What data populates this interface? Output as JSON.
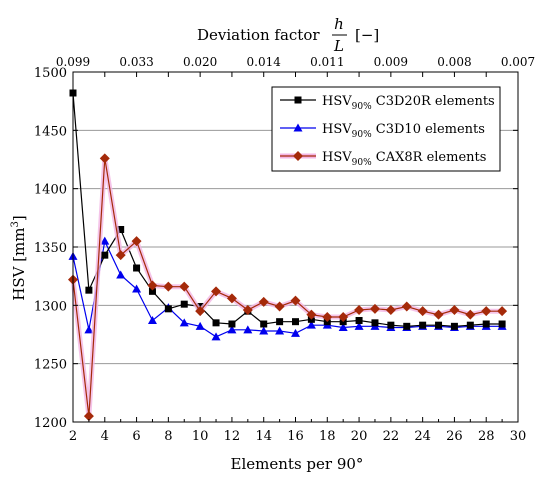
{
  "chart_data": {
    "type": "line",
    "title": "",
    "xlabel": "Elements per 90°",
    "ylabel_main": "HSV [mm",
    "ylabel_sup": "3",
    "ylabel_close": "]",
    "xlim": [
      2,
      30
    ],
    "ylim": [
      1200,
      1500
    ],
    "x_ticks": [
      2,
      4,
      6,
      8,
      10,
      12,
      14,
      16,
      18,
      20,
      22,
      24,
      26,
      28,
      30
    ],
    "y_ticks": [
      1200,
      1250,
      1300,
      1350,
      1400,
      1450,
      1500
    ],
    "grid": "horizontal",
    "top_axis": {
      "label_prefix": "Deviation factor",
      "frac_num": "h",
      "frac_den": "L",
      "label_suffix": "[−]",
      "tick_labels": [
        "0.099",
        "0.033",
        "0.020",
        "0.014",
        "0.011",
        "0.009",
        "0.008",
        "0.007"
      ]
    },
    "legend_position": "top-right",
    "x": [
      2,
      3,
      4,
      5,
      6,
      7,
      8,
      9,
      10,
      11,
      12,
      13,
      14,
      15,
      16,
      17,
      18,
      19,
      20,
      21,
      22,
      23,
      24,
      25,
      26,
      27,
      28,
      29
    ],
    "series": [
      {
        "name_main": "HSV",
        "name_sub": "90%",
        "name_rest": " C3D20R elements",
        "color": "#000000",
        "marker": "square",
        "values": [
          1482,
          1313,
          1343,
          1365,
          1332,
          1312,
          1297,
          1301,
          1299,
          1285,
          1284,
          1295,
          1284,
          1286,
          1286,
          1288,
          1286,
          1286,
          1287,
          1285,
          1283,
          1282,
          1283,
          1283,
          1282,
          1283,
          1284,
          1284
        ]
      },
      {
        "name_main": "HSV",
        "name_sub": "90%",
        "name_rest": " C3D10 elements",
        "color": "#0000ee",
        "marker": "triangle",
        "values": [
          1342,
          1279,
          1355,
          1326,
          1314,
          1287,
          1298,
          1285,
          1282,
          1273,
          1279,
          1279,
          1278,
          1278,
          1276,
          1283,
          1283,
          1281,
          1282,
          1282,
          1281,
          1281,
          1282,
          1282,
          1281,
          1282,
          1282,
          1282
        ]
      },
      {
        "name_main": "HSV",
        "name_sub": "90%",
        "name_rest": " CAX8R elements",
        "color": "#a52a0a",
        "marker": "diamond",
        "values": [
          1322,
          1205,
          1426,
          1343,
          1355,
          1317,
          1316,
          1316,
          1295,
          1312,
          1306,
          1296,
          1303,
          1299,
          1304,
          1292,
          1290,
          1290,
          1296,
          1297,
          1296,
          1299,
          1295,
          1292,
          1296,
          1292,
          1295,
          1295
        ]
      }
    ]
  }
}
